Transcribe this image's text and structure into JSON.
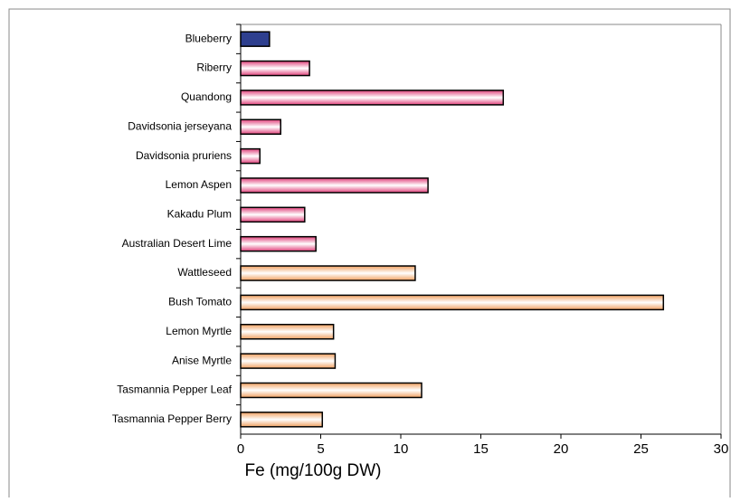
{
  "chart_data": {
    "type": "hbar",
    "x_label": "Fe (mg/100g DW)",
    "categories": [
      "Blueberry",
      "Riberry",
      "Quandong",
      "Davidsonia jerseyana",
      "Davidsonia pruriens",
      "Lemon Aspen",
      "Kakadu Plum",
      "Australian Desert Lime",
      "Wattleseed",
      "Bush Tomato",
      "Lemon Myrtle",
      "Anise Myrtle",
      "Tasmannia Pepper Leaf",
      "Tasmannia Pepper Berry"
    ],
    "values": [
      1.8,
      4.3,
      16.4,
      2.5,
      1.2,
      11.7,
      4.0,
      4.7,
      10.9,
      26.4,
      5.8,
      5.9,
      11.3,
      5.1
    ],
    "colors": [
      "#2e3f8f",
      "#e0407a",
      "#e0407a",
      "#e0407a",
      "#e0407a",
      "#e0407a",
      "#e0407a",
      "#e0407a",
      "#f0a060",
      "#f0a060",
      "#f0a060",
      "#f0a060",
      "#f0a060",
      "#f0a060"
    ],
    "xlim": [
      0,
      30
    ],
    "xticks": [
      0,
      5,
      10,
      15,
      20,
      25,
      30
    ]
  }
}
